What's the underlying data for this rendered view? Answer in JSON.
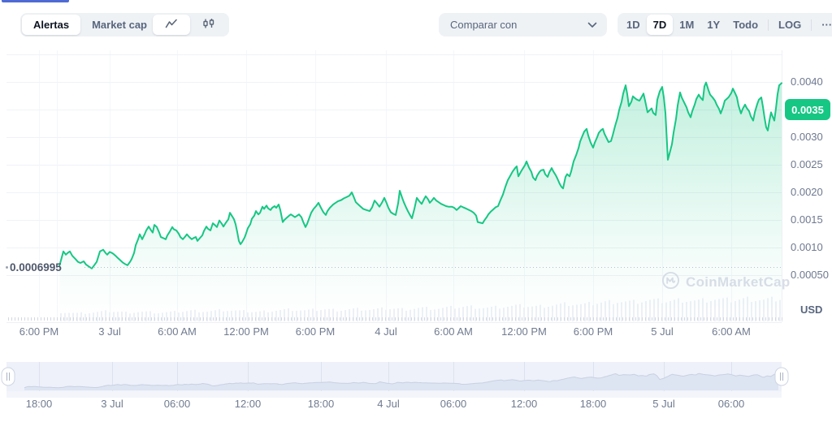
{
  "toolbar": {
    "tabs": [
      {
        "label": "Alertas",
        "active": true
      },
      {
        "label": "Market cap",
        "active": false
      }
    ],
    "chart_type_icons": [
      {
        "icon": "line-chart-icon",
        "active": true
      },
      {
        "icon": "candlestick-chart-icon",
        "active": false
      }
    ],
    "compare_label": "Comparar con",
    "compare_icon": "chevron-down-icon",
    "ranges": [
      "1D",
      "7D",
      "1M",
      "1Y",
      "Todo"
    ],
    "active_range": "7D",
    "log_label": "LOG",
    "more_label": "···"
  },
  "watermark": {
    "logo": "coinmarketcap-logo",
    "text": "CoinMarketCap"
  },
  "chart_data": {
    "type": "area",
    "unit": "USD",
    "line_color": "#16c784",
    "ylim": [
      0,
      0.0045
    ],
    "y_ticks": [
      "0.0040",
      "0.0035",
      "0.0030",
      "0.0025",
      "0.0020",
      "0.0015",
      "0.0010",
      "0.00050"
    ],
    "highlighted_tick": "0.0035",
    "start_price": 0.0006995,
    "start_price_label": "0.0006995",
    "x_ticks": [
      "6:00 PM",
      "3 Jul",
      "6:00 AM",
      "12:00 PM",
      "6:00 PM",
      "4 Jul",
      "6:00 AM",
      "12:00 PM",
      "6:00 PM",
      "5 Jul",
      "6:00 AM"
    ],
    "navigator": {
      "x_ticks": [
        "18:00",
        "3 Jul",
        "06:00",
        "12:00",
        "18:00",
        "4 Jul",
        "06:00",
        "12:00",
        "18:00",
        "5 Jul",
        "06:00"
      ]
    },
    "points": [
      [
        73,
        0.00066
      ],
      [
        76,
        0.00082
      ],
      [
        78,
        0.00093
      ],
      [
        81,
        0.00087
      ],
      [
        84,
        0.00091
      ],
      [
        86,
        0.00093
      ],
      [
        89,
        0.00085
      ],
      [
        93,
        0.00079
      ],
      [
        96,
        0.00074
      ],
      [
        99,
        0.00072
      ],
      [
        103,
        0.00075
      ],
      [
        106,
        0.00069
      ],
      [
        110,
        0.00065
      ],
      [
        113,
        0.00062
      ],
      [
        116,
        0.00068
      ],
      [
        119,
        0.00074
      ],
      [
        123,
        0.00093
      ],
      [
        127,
        0.00096
      ],
      [
        130,
        0.0009
      ],
      [
        132,
        0.00087
      ],
      [
        135,
        0.00092
      ],
      [
        138,
        0.0009
      ],
      [
        140,
        0.00088
      ],
      [
        143,
        0.00084
      ],
      [
        145,
        0.00081
      ],
      [
        148,
        0.00077
      ],
      [
        151,
        0.00073
      ],
      [
        154,
        0.0007
      ],
      [
        157,
        0.00068
      ],
      [
        160,
        0.00074
      ],
      [
        162,
        0.00079
      ],
      [
        165,
        0.0009
      ],
      [
        167,
        0.00104
      ],
      [
        170,
        0.00115
      ],
      [
        172,
        0.00124
      ],
      [
        175,
        0.00115
      ],
      [
        178,
        0.00124
      ],
      [
        180,
        0.00131
      ],
      [
        183,
        0.00138
      ],
      [
        186,
        0.00131
      ],
      [
        188,
        0.00127
      ],
      [
        190,
        0.00141
      ],
      [
        193,
        0.00137
      ],
      [
        196,
        0.00127
      ],
      [
        198,
        0.00119
      ],
      [
        201,
        0.00117
      ],
      [
        204,
        0.00115
      ],
      [
        206,
        0.00122
      ],
      [
        209,
        0.00129
      ],
      [
        212,
        0.00137
      ],
      [
        214,
        0.00133
      ],
      [
        217,
        0.00131
      ],
      [
        220,
        0.00125
      ],
      [
        222,
        0.00119
      ],
      [
        225,
        0.00115
      ],
      [
        228,
        0.0012
      ],
      [
        230,
        0.00124
      ],
      [
        233,
        0.00119
      ],
      [
        236,
        0.00115
      ],
      [
        238,
        0.00117
      ],
      [
        241,
        0.00119
      ],
      [
        243,
        0.00112
      ],
      [
        246,
        0.00117
      ],
      [
        249,
        0.00122
      ],
      [
        251,
        0.0013
      ],
      [
        254,
        0.00138
      ],
      [
        256,
        0.00134
      ],
      [
        259,
        0.00131
      ],
      [
        262,
        0.00144
      ],
      [
        265,
        0.0014
      ],
      [
        267,
        0.00137
      ],
      [
        270,
        0.00149
      ],
      [
        273,
        0.00143
      ],
      [
        275,
        0.00138
      ],
      [
        278,
        0.00145
      ],
      [
        281,
        0.00151
      ],
      [
        283,
        0.00163
      ],
      [
        286,
        0.00156
      ],
      [
        288,
        0.00151
      ],
      [
        290,
        0.00142
      ],
      [
        292,
        0.00128
      ],
      [
        294,
        0.00112
      ],
      [
        296,
        0.00106
      ],
      [
        298,
        0.0011
      ],
      [
        301,
        0.00118
      ],
      [
        303,
        0.00126
      ],
      [
        305,
        0.00135
      ],
      [
        308,
        0.00142
      ],
      [
        310,
        0.00152
      ],
      [
        313,
        0.00158
      ],
      [
        315,
        0.00166
      ],
      [
        318,
        0.0016
      ],
      [
        320,
        0.00163
      ],
      [
        323,
        0.00174
      ],
      [
        325,
        0.0017
      ],
      [
        328,
        0.00176
      ],
      [
        330,
        0.00171
      ],
      [
        333,
        0.00168
      ],
      [
        335,
        0.00172
      ],
      [
        338,
        0.00175
      ],
      [
        340,
        0.00172
      ],
      [
        343,
        0.00178
      ],
      [
        345,
        0.00168
      ],
      [
        348,
        0.00146
      ],
      [
        350,
        0.0015
      ],
      [
        353,
        0.00154
      ],
      [
        356,
        0.00158
      ],
      [
        358,
        0.0016
      ],
      [
        361,
        0.00157
      ],
      [
        363,
        0.00155
      ],
      [
        366,
        0.00158
      ],
      [
        368,
        0.0016
      ],
      [
        371,
        0.00155
      ],
      [
        373,
        0.00147
      ],
      [
        376,
        0.00137
      ],
      [
        378,
        0.00143
      ],
      [
        381,
        0.00155
      ],
      [
        383,
        0.00163
      ],
      [
        386,
        0.0017
      ],
      [
        389,
        0.00175
      ],
      [
        392,
        0.00181
      ],
      [
        395,
        0.00172
      ],
      [
        398,
        0.00164
      ],
      [
        401,
        0.00159
      ],
      [
        403,
        0.00166
      ],
      [
        406,
        0.00172
      ],
      [
        410,
        0.00178
      ],
      [
        413,
        0.00181
      ],
      [
        416,
        0.00184
      ],
      [
        420,
        0.00186
      ],
      [
        423,
        0.00189
      ],
      [
        426,
        0.00191
      ],
      [
        430,
        0.00194
      ],
      [
        433,
        0.002
      ],
      [
        435,
        0.00193
      ],
      [
        438,
        0.00182
      ],
      [
        441,
        0.00178
      ],
      [
        444,
        0.00174
      ],
      [
        447,
        0.0017
      ],
      [
        451,
        0.00168
      ],
      [
        455,
        0.00166
      ],
      [
        458,
        0.00173
      ],
      [
        461,
        0.00185
      ],
      [
        464,
        0.0018
      ],
      [
        467,
        0.00174
      ],
      [
        470,
        0.00181
      ],
      [
        473,
        0.0019
      ],
      [
        476,
        0.0018
      ],
      [
        478,
        0.00172
      ],
      [
        481,
        0.00164
      ],
      [
        484,
        0.00161
      ],
      [
        487,
        0.00159
      ],
      [
        490,
        0.0018
      ],
      [
        492,
        0.00203
      ],
      [
        495,
        0.0019
      ],
      [
        497,
        0.00182
      ],
      [
        500,
        0.00172
      ],
      [
        502,
        0.00166
      ],
      [
        505,
        0.00158
      ],
      [
        507,
        0.00153
      ],
      [
        510,
        0.0017
      ],
      [
        513,
        0.0019
      ],
      [
        516,
        0.00184
      ],
      [
        519,
        0.00179
      ],
      [
        522,
        0.00188
      ],
      [
        524,
        0.00193
      ],
      [
        527,
        0.00187
      ],
      [
        529,
        0.00181
      ],
      [
        532,
        0.00186
      ],
      [
        534,
        0.0019
      ],
      [
        537,
        0.00185
      ],
      [
        540,
        0.00182
      ],
      [
        543,
        0.00179
      ],
      [
        546,
        0.00177
      ],
      [
        549,
        0.00175
      ],
      [
        552,
        0.00174
      ],
      [
        556,
        0.00174
      ],
      [
        559,
        0.00172
      ],
      [
        562,
        0.00168
      ],
      [
        565,
        0.00172
      ],
      [
        567,
        0.00175
      ],
      [
        570,
        0.00173
      ],
      [
        573,
        0.00171
      ],
      [
        576,
        0.00169
      ],
      [
        580,
        0.00166
      ],
      [
        583,
        0.00163
      ],
      [
        586,
        0.00158
      ],
      [
        588,
        0.00146
      ],
      [
        591,
        0.00145
      ],
      [
        594,
        0.00144
      ],
      [
        596,
        0.00149
      ],
      [
        599,
        0.00155
      ],
      [
        601,
        0.0016
      ],
      [
        604,
        0.00165
      ],
      [
        607,
        0.00169
      ],
      [
        610,
        0.00173
      ],
      [
        613,
        0.00175
      ],
      [
        616,
        0.00186
      ],
      [
        619,
        0.00196
      ],
      [
        622,
        0.0021
      ],
      [
        625,
        0.00222
      ],
      [
        628,
        0.0023
      ],
      [
        631,
        0.00238
      ],
      [
        634,
        0.00244
      ],
      [
        636,
        0.00247
      ],
      [
        638,
        0.00229
      ],
      [
        641,
        0.00237
      ],
      [
        643,
        0.00242
      ],
      [
        646,
        0.00249
      ],
      [
        648,
        0.00256
      ],
      [
        651,
        0.00245
      ],
      [
        654,
        0.00237
      ],
      [
        656,
        0.00227
      ],
      [
        659,
        0.00222
      ],
      [
        661,
        0.0023
      ],
      [
        664,
        0.00237
      ],
      [
        666,
        0.0024
      ],
      [
        669,
        0.00241
      ],
      [
        671,
        0.00233
      ],
      [
        674,
        0.00228
      ],
      [
        676,
        0.00236
      ],
      [
        679,
        0.00244
      ],
      [
        681,
        0.00238
      ],
      [
        684,
        0.00231
      ],
      [
        686,
        0.00225
      ],
      [
        689,
        0.00215
      ],
      [
        691,
        0.0021
      ],
      [
        693,
        0.00207
      ],
      [
        696,
        0.00228
      ],
      [
        698,
        0.00233
      ],
      [
        701,
        0.00229
      ],
      [
        703,
        0.00238
      ],
      [
        706,
        0.00256
      ],
      [
        709,
        0.00267
      ],
      [
        712,
        0.0028
      ],
      [
        714,
        0.00292
      ],
      [
        717,
        0.00303
      ],
      [
        719,
        0.0031
      ],
      [
        722,
        0.00315
      ],
      [
        724,
        0.00303
      ],
      [
        727,
        0.0029
      ],
      [
        730,
        0.00281
      ],
      [
        732,
        0.0029
      ],
      [
        735,
        0.003
      ],
      [
        737,
        0.00308
      ],
      [
        740,
        0.00313
      ],
      [
        742,
        0.00315
      ],
      [
        744,
        0.00306
      ],
      [
        747,
        0.00297
      ],
      [
        749,
        0.00291
      ],
      [
        752,
        0.00293
      ],
      [
        754,
        0.00303
      ],
      [
        757,
        0.0032
      ],
      [
        760,
        0.00335
      ],
      [
        762,
        0.00349
      ],
      [
        765,
        0.00364
      ],
      [
        767,
        0.00379
      ],
      [
        770,
        0.00394
      ],
      [
        772,
        0.00378
      ],
      [
        774,
        0.00356
      ],
      [
        777,
        0.00364
      ],
      [
        779,
        0.00374
      ],
      [
        782,
        0.0037
      ],
      [
        784,
        0.00368
      ],
      [
        787,
        0.00366
      ],
      [
        789,
        0.00371
      ],
      [
        792,
        0.00379
      ],
      [
        794,
        0.00366
      ],
      [
        797,
        0.00345
      ],
      [
        799,
        0.00348
      ],
      [
        802,
        0.00352
      ],
      [
        804,
        0.00344
      ],
      [
        807,
        0.0034
      ],
      [
        809,
        0.00368
      ],
      [
        812,
        0.00383
      ],
      [
        815,
        0.00391
      ],
      [
        817,
        0.00372
      ],
      [
        819,
        0.00344
      ],
      [
        822,
        0.00259
      ],
      [
        824,
        0.0027
      ],
      [
        827,
        0.00287
      ],
      [
        829,
        0.00308
      ],
      [
        832,
        0.00333
      ],
      [
        834,
        0.00357
      ],
      [
        837,
        0.00381
      ],
      [
        839,
        0.00372
      ],
      [
        842,
        0.00363
      ],
      [
        845,
        0.00354
      ],
      [
        847,
        0.00345
      ],
      [
        850,
        0.00336
      ],
      [
        852,
        0.00347
      ],
      [
        855,
        0.00359
      ],
      [
        857,
        0.00369
      ],
      [
        860,
        0.00377
      ],
      [
        862,
        0.00372
      ],
      [
        865,
        0.00367
      ],
      [
        867,
        0.00392
      ],
      [
        869,
        0.00399
      ],
      [
        872,
        0.00385
      ],
      [
        874,
        0.00377
      ],
      [
        877,
        0.00372
      ],
      [
        880,
        0.00366
      ],
      [
        882,
        0.00359
      ],
      [
        885,
        0.00351
      ],
      [
        887,
        0.00343
      ],
      [
        890,
        0.00355
      ],
      [
        892,
        0.00366
      ],
      [
        895,
        0.0037
      ],
      [
        897,
        0.00373
      ],
      [
        900,
        0.0038
      ],
      [
        902,
        0.00388
      ],
      [
        905,
        0.00379
      ],
      [
        907,
        0.00372
      ],
      [
        909,
        0.00357
      ],
      [
        912,
        0.00343
      ],
      [
        914,
        0.00351
      ],
      [
        917,
        0.00359
      ],
      [
        919,
        0.00353
      ],
      [
        922,
        0.00347
      ],
      [
        924,
        0.00338
      ],
      [
        927,
        0.0033
      ],
      [
        929,
        0.00345
      ],
      [
        932,
        0.0036
      ],
      [
        934,
        0.00368
      ],
      [
        937,
        0.00372
      ],
      [
        939,
        0.00355
      ],
      [
        941,
        0.00335
      ],
      [
        943,
        0.00318
      ],
      [
        945,
        0.00312
      ],
      [
        947,
        0.0033
      ],
      [
        949,
        0.00345
      ],
      [
        951,
        0.00337
      ],
      [
        953,
        0.0033
      ],
      [
        955,
        0.00352
      ],
      [
        957,
        0.00378
      ],
      [
        959,
        0.00394
      ],
      [
        962,
        0.00398
      ]
    ],
    "volume_profile": [
      0.35,
      0.3,
      0.33,
      0.38,
      0.33,
      0.36,
      0.32,
      0.35,
      0.4,
      0.37,
      0.42,
      0.38,
      0.35,
      0.4,
      0.44,
      0.4,
      0.45,
      0.42,
      0.46,
      0.43,
      0.48,
      0.45,
      0.5,
      0.47,
      0.52,
      0.55,
      0.5,
      0.54,
      0.58,
      0.55,
      0.6,
      0.65,
      0.62,
      0.7,
      0.75,
      0.72,
      0.78,
      0.74,
      0.8,
      0.76,
      0.82,
      0.78,
      0.84,
      0.8,
      0.85
    ]
  }
}
